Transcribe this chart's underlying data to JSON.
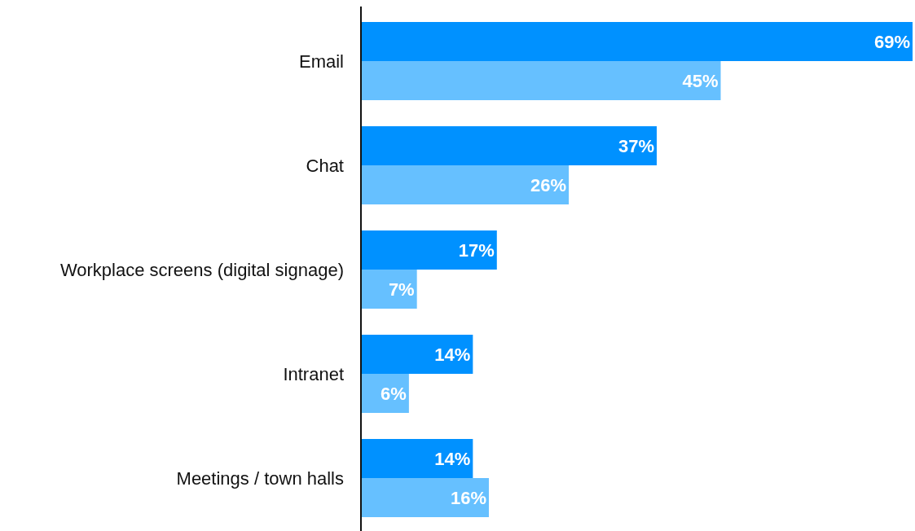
{
  "chart_data": {
    "type": "bar",
    "orientation": "horizontal",
    "categories": [
      "Email",
      "Chat",
      "Workplace screens (digital signage)",
      "Intranet",
      "Meetings / town halls"
    ],
    "series": [
      {
        "color": "#0091ff",
        "values": [
          69,
          37,
          17,
          14,
          14
        ],
        "value_labels": [
          "69%",
          "37%",
          "17%",
          "14%",
          "14%"
        ]
      },
      {
        "color": "#66c0ff",
        "values": [
          45,
          26,
          7,
          6,
          16
        ],
        "value_labels": [
          "45%",
          "26%",
          "7%",
          "6%",
          "16%"
        ]
      }
    ]
  }
}
